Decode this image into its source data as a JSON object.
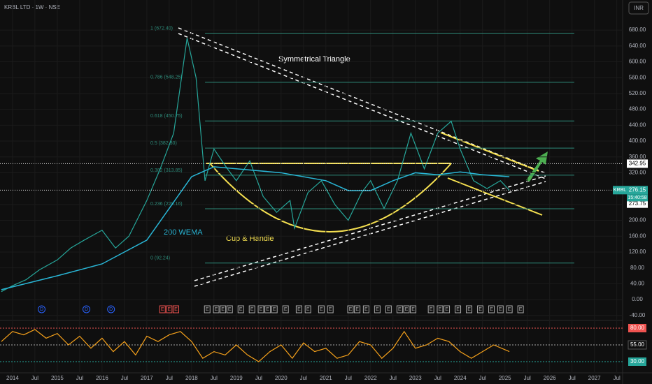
{
  "chart_data": {
    "type": "line",
    "title": "KRBL LTD · 1W · NSE",
    "currency": "INR",
    "symbol": "KRBL",
    "countdown": "15:40:58",
    "xlim": [
      2013.72,
      2027.63
    ],
    "xticks": [
      2014,
      {
        "value": 2014.5,
        "label": "Jul"
      },
      2015,
      {
        "value": 2015.5,
        "label": "Jul"
      },
      2016,
      {
        "value": 2016.5,
        "label": "Jul"
      },
      2017,
      {
        "value": 2017.5,
        "label": "Jul"
      },
      2018,
      {
        "value": 2018.5,
        "label": "Jul"
      },
      2019,
      {
        "value": 2019.5,
        "label": "Jul"
      },
      2020,
      {
        "value": 2020.5,
        "label": "Jul"
      },
      2021,
      {
        "value": 2021.5,
        "label": "Jul"
      },
      2022,
      {
        "value": 2022.5,
        "label": "Jul"
      },
      2023,
      {
        "value": 2023.5,
        "label": "Jul"
      },
      2024,
      {
        "value": 2024.5,
        "label": "Jul"
      },
      2025,
      {
        "value": 2025.5,
        "label": "Jul"
      },
      2026,
      {
        "value": 2026.5,
        "label": "Jul"
      },
      2027,
      {
        "value": 2027.5,
        "label": "Jul"
      }
    ],
    "ylim": [
      -51,
      756
    ],
    "yticks": [
      {
        "value": 680,
        "label": "680.00"
      },
      {
        "value": 640,
        "label": "640.00"
      },
      {
        "value": 600,
        "label": "600.00"
      },
      {
        "value": 560,
        "label": "560.00"
      },
      {
        "value": 520,
        "label": "520.00"
      },
      {
        "value": 480,
        "label": "480.00"
      },
      {
        "value": 440,
        "label": "440.00"
      },
      {
        "value": 400,
        "label": "400.00"
      },
      {
        "value": 360,
        "label": "360.00"
      },
      {
        "value": 320,
        "label": "320.00"
      },
      {
        "value": 240,
        "label": "240.00"
      },
      {
        "value": 200,
        "label": "200.00"
      },
      {
        "value": 160,
        "label": "160.00"
      },
      {
        "value": 120,
        "label": "120.00"
      },
      {
        "value": 80,
        "label": "80.00"
      },
      {
        "value": 40,
        "label": "40.00"
      },
      {
        "value": 0,
        "label": "0.00"
      },
      {
        "value": -40,
        "label": "-40.00"
      }
    ],
    "series": [
      {
        "color": "#26a69a",
        "x": [
          2013.75,
          2014,
          2014.3,
          2014.6,
          2015,
          2015.3,
          2015.6,
          2016,
          2016.3,
          2016.6,
          2017,
          2017.3,
          2017.6,
          2017.9,
          2018.1,
          2018.3,
          2018.5,
          2018.8,
          2019,
          2019.3,
          2019.6,
          2019.9,
          2020.2,
          2020.3,
          2020.6,
          2020.9,
          2021.2,
          2021.5,
          2021.8,
          2022,
          2022.3,
          2022.6,
          2022.9,
          2023.2,
          2023.5,
          2023.8,
          2024,
          2024.3,
          2024.6,
          2024.9,
          2025.1
        ],
        "values": [
          20,
          35,
          50,
          75,
          100,
          130,
          150,
          175,
          130,
          160,
          250,
          330,
          420,
          660,
          560,
          300,
          380,
          330,
          300,
          350,
          260,
          220,
          250,
          180,
          270,
          300,
          240,
          200,
          270,
          300,
          230,
          300,
          420,
          330,
          420,
          450,
          380,
          300,
          280,
          300,
          276
        ]
      },
      {
        "name": "200 WEMA",
        "color": "#29b6d6",
        "x": [
          2013.75,
          2015,
          2016,
          2017,
          2017.5,
          2018,
          2018.5,
          2019,
          2020,
          2021,
          2021.5,
          2022,
          2022.5,
          2023,
          2023.5,
          2024,
          2024.5,
          2025.1
        ],
        "values": [
          25,
          60,
          90,
          150,
          230,
          310,
          335,
          330,
          320,
          300,
          275,
          275,
          300,
          320,
          315,
          322,
          315,
          310
        ]
      }
    ],
    "fib_levels": [
      {
        "label": "1 (672.40)",
        "value": 672.4
      },
      {
        "label": "0.786 (548.25)",
        "value": 548.25
      },
      {
        "label": "0.618 (450.75)",
        "value": 450.75
      },
      {
        "label": "0.5 (382.30)",
        "value": 382.3
      },
      {
        "label": "0.382 (313.85)",
        "value": 313.85
      },
      {
        "label": "0.236 (229.16)",
        "value": 229.16
      },
      {
        "label": "0 (92.24)",
        "value": 92.24
      }
    ],
    "fib_xlim": [
      2018.3,
      2026.55
    ],
    "price_marks": [
      342.95,
      276.15,
      273.75
    ],
    "annotations": [
      "Symmetrical Triangle",
      "Cup & Handle"
    ],
    "dividend_label": "D",
    "dividend_x": [
      2014.65,
      2015.65,
      2016.2
    ],
    "earnings_label": "E",
    "earnings_x": [
      2017.35,
      2017.5,
      2017.65,
      2018.35,
      2018.55,
      2018.7,
      2018.85,
      2019.1,
      2019.35,
      2019.55,
      2019.7,
      2019.85,
      2020.1,
      2020.4,
      2020.6,
      2020.9,
      2021.1,
      2021.55,
      2021.7,
      2021.9,
      2022.15,
      2022.4,
      2022.65,
      2022.8,
      2022.95,
      2023.35,
      2023.55,
      2023.7,
      2023.95,
      2024.2,
      2024.45,
      2024.7,
      2024.9,
      2025.1,
      2025.35
    ],
    "rsi": {
      "color": "#f7a21b",
      "ylim": [
        12.3,
        90.4
      ],
      "yticks": [
        {
          "value": 80,
          "label": "80.00"
        },
        {
          "value": 55,
          "label": "55.00"
        },
        {
          "value": 30,
          "label": "30.00"
        }
      ],
      "x": [
        2013.75,
        2014,
        2014.25,
        2014.5,
        2014.75,
        2015,
        2015.25,
        2015.5,
        2015.75,
        2016,
        2016.25,
        2016.5,
        2016.75,
        2017,
        2017.25,
        2017.5,
        2017.75,
        2018,
        2018.25,
        2018.5,
        2018.75,
        2019,
        2019.25,
        2019.5,
        2019.75,
        2020,
        2020.25,
        2020.5,
        2020.75,
        2021,
        2021.25,
        2021.5,
        2021.75,
        2022,
        2022.25,
        2022.5,
        2022.75,
        2023,
        2023.25,
        2023.5,
        2023.75,
        2024,
        2024.25,
        2024.5,
        2024.75,
        2025.1
      ],
      "values": [
        60,
        75,
        70,
        78,
        65,
        72,
        55,
        68,
        50,
        65,
        45,
        60,
        40,
        68,
        60,
        70,
        75,
        60,
        35,
        45,
        40,
        55,
        40,
        30,
        45,
        55,
        35,
        58,
        45,
        50,
        35,
        40,
        60,
        55,
        35,
        50,
        75,
        50,
        55,
        65,
        60,
        45,
        35,
        45,
        55,
        45
      ]
    }
  }
}
